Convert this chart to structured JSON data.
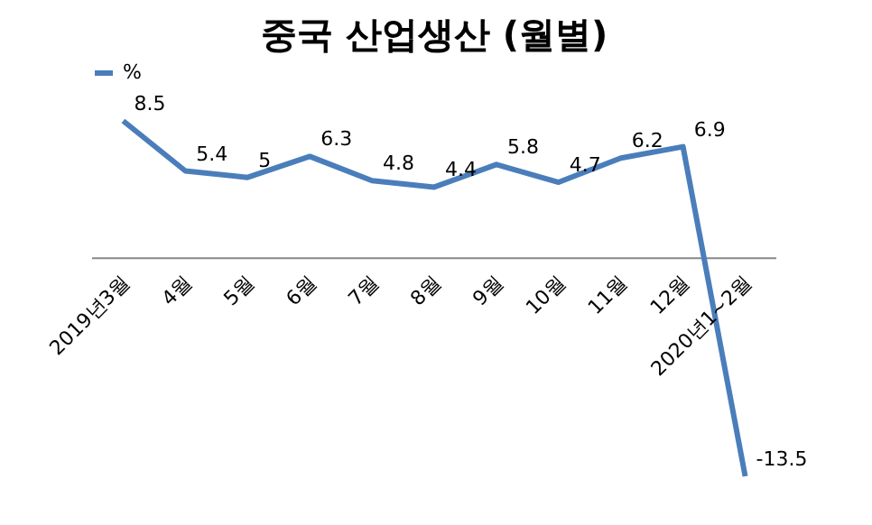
{
  "chart_data": {
    "type": "line",
    "title": "중국 산업생산 (월별)",
    "categories": [
      "2019년3월",
      "4월",
      "5월",
      "6월",
      "7월",
      "8월",
      "9월",
      "10월",
      "11월",
      "12월",
      "2020년1~2월"
    ],
    "series": [
      {
        "name": "%",
        "color": "#4a7ebb",
        "values": [
          8.5,
          5.4,
          5,
          6.3,
          4.8,
          4.4,
          5.8,
          4.7,
          6.2,
          6.9,
          -13.5
        ]
      }
    ],
    "data_labels": true,
    "legend": "top",
    "marker": "none",
    "line_style": "solid"
  }
}
